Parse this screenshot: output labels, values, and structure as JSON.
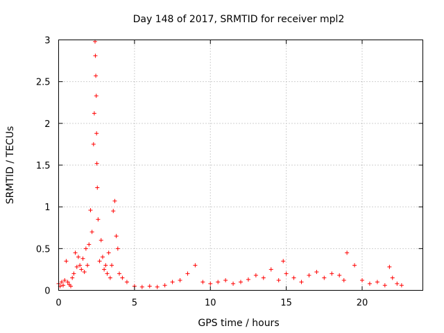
{
  "chart_data": {
    "type": "scatter",
    "title": "Day 148 of 2017, SRMTID for receiver mpl2",
    "xlabel": "GPS time / hours",
    "ylabel": "SRMTID / TECUs",
    "xlim": [
      0,
      24
    ],
    "ylim": [
      0,
      3
    ],
    "x_ticks": [
      0,
      5,
      10,
      15,
      20
    ],
    "x_tick_labels": [
      "0",
      "5",
      "10",
      "15",
      "20"
    ],
    "y_ticks": [
      0,
      0.5,
      1,
      1.5,
      2,
      2.5,
      3
    ],
    "y_tick_labels": [
      "0",
      "0.5",
      "1",
      "1.5",
      "2",
      "2.5",
      "3"
    ],
    "grid": true,
    "marker": "+",
    "color": "#ff0000",
    "series": [
      {
        "name": "SRMTID",
        "x": [
          0.0,
          0.1,
          0.2,
          0.3,
          0.4,
          0.5,
          0.6,
          0.7,
          0.8,
          0.9,
          1.0,
          1.1,
          1.2,
          1.3,
          1.4,
          1.5,
          1.6,
          1.7,
          1.8,
          1.9,
          2.0,
          2.1,
          2.2,
          2.3,
          2.35,
          2.4,
          2.42,
          2.45,
          2.48,
          2.5,
          2.52,
          2.55,
          2.6,
          2.7,
          2.8,
          2.9,
          3.0,
          3.1,
          3.2,
          3.3,
          3.4,
          3.5,
          3.6,
          3.7,
          3.8,
          3.9,
          4.0,
          4.2,
          4.5,
          5.0,
          5.5,
          6.0,
          6.5,
          7.0,
          7.5,
          8.0,
          8.5,
          9.0,
          9.5,
          10.0,
          10.5,
          11.0,
          11.5,
          12.0,
          12.5,
          13.0,
          13.5,
          14.0,
          14.5,
          14.8,
          15.0,
          15.5,
          16.0,
          16.5,
          17.0,
          17.5,
          18.0,
          18.5,
          18.8,
          19.0,
          19.5,
          20.0,
          20.5,
          21.0,
          21.5,
          21.8,
          22.0,
          22.3,
          22.6
        ],
        "y": [
          0.08,
          0.05,
          0.1,
          0.06,
          0.12,
          0.35,
          0.1,
          0.07,
          0.05,
          0.15,
          0.2,
          0.45,
          0.28,
          0.4,
          0.3,
          0.25,
          0.38,
          0.22,
          0.5,
          0.3,
          0.55,
          0.96,
          0.7,
          1.75,
          2.12,
          2.98,
          2.81,
          2.57,
          2.33,
          1.88,
          1.52,
          1.23,
          0.85,
          0.35,
          0.6,
          0.4,
          0.25,
          0.3,
          0.2,
          0.45,
          0.15,
          0.3,
          0.95,
          1.07,
          0.65,
          0.5,
          0.2,
          0.15,
          0.1,
          0.05,
          0.04,
          0.05,
          0.04,
          0.06,
          0.1,
          0.12,
          0.2,
          0.3,
          0.1,
          0.08,
          0.1,
          0.12,
          0.08,
          0.1,
          0.13,
          0.18,
          0.15,
          0.25,
          0.12,
          0.35,
          0.2,
          0.15,
          0.1,
          0.18,
          0.22,
          0.15,
          0.2,
          0.18,
          0.12,
          0.45,
          0.3,
          0.12,
          0.08,
          0.1,
          0.06,
          0.28,
          0.15,
          0.08,
          0.06
        ]
      }
    ]
  }
}
